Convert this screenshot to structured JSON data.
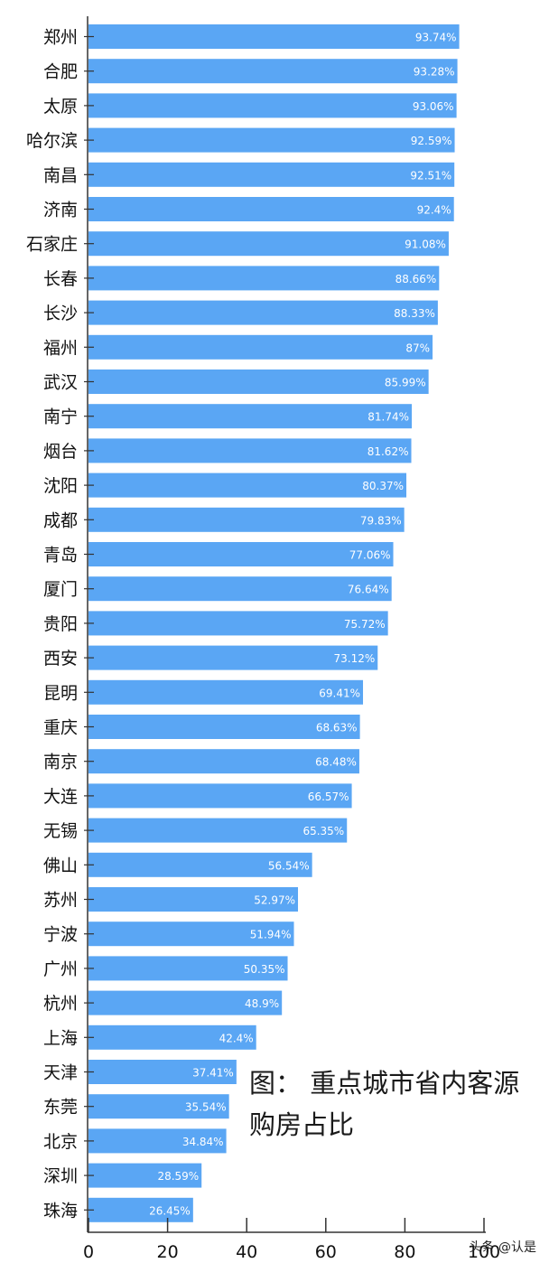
{
  "chart_data": {
    "type": "bar",
    "orientation": "horizontal",
    "categories": [
      "郑州",
      "合肥",
      "太原",
      "哈尔滨",
      "南昌",
      "济南",
      "石家庄",
      "长春",
      "长沙",
      "福州",
      "武汉",
      "南宁",
      "烟台",
      "沈阳",
      "成都",
      "青岛",
      "厦门",
      "贵阳",
      "西安",
      "昆明",
      "重庆",
      "南京",
      "大连",
      "无锡",
      "佛山",
      "苏州",
      "宁波",
      "广州",
      "杭州",
      "上海",
      "天津",
      "东莞",
      "北京",
      "深圳",
      "珠海"
    ],
    "values": [
      93.74,
      93.28,
      93.06,
      92.59,
      92.51,
      92.4,
      91.08,
      88.66,
      88.33,
      87,
      85.99,
      81.74,
      81.62,
      80.37,
      79.83,
      77.06,
      76.64,
      75.72,
      73.12,
      69.41,
      68.63,
      68.48,
      66.57,
      65.35,
      56.54,
      52.97,
      51.94,
      50.35,
      48.9,
      42.4,
      37.41,
      35.54,
      34.84,
      28.59,
      26.45
    ],
    "data_labels": [
      "93.74%",
      "93.28%",
      "93.06%",
      "92.59%",
      "92.51%",
      "92.4%",
      "91.08%",
      "88.66%",
      "88.33%",
      "87%",
      "85.99%",
      "81.74%",
      "81.62%",
      "80.37%",
      "79.83%",
      "77.06%",
      "76.64%",
      "75.72%",
      "73.12%",
      "69.41%",
      "68.63%",
      "68.48%",
      "66.57%",
      "65.35%",
      "56.54%",
      "52.97%",
      "51.94%",
      "50.35%",
      "48.9%",
      "42.4%",
      "37.41%",
      "35.54%",
      "34.84%",
      "28.59%",
      "26.45%"
    ],
    "xlim": [
      0,
      100
    ],
    "xticks": [
      0,
      20,
      40,
      60,
      80,
      100
    ],
    "grid": false,
    "legend": "none",
    "bar_color": "#5aa6f4",
    "label_color": "#ffffff"
  },
  "caption": {
    "line1": "图： 重点城市省内客源",
    "line2": "购房占比"
  },
  "watermark": "头条 @认是"
}
